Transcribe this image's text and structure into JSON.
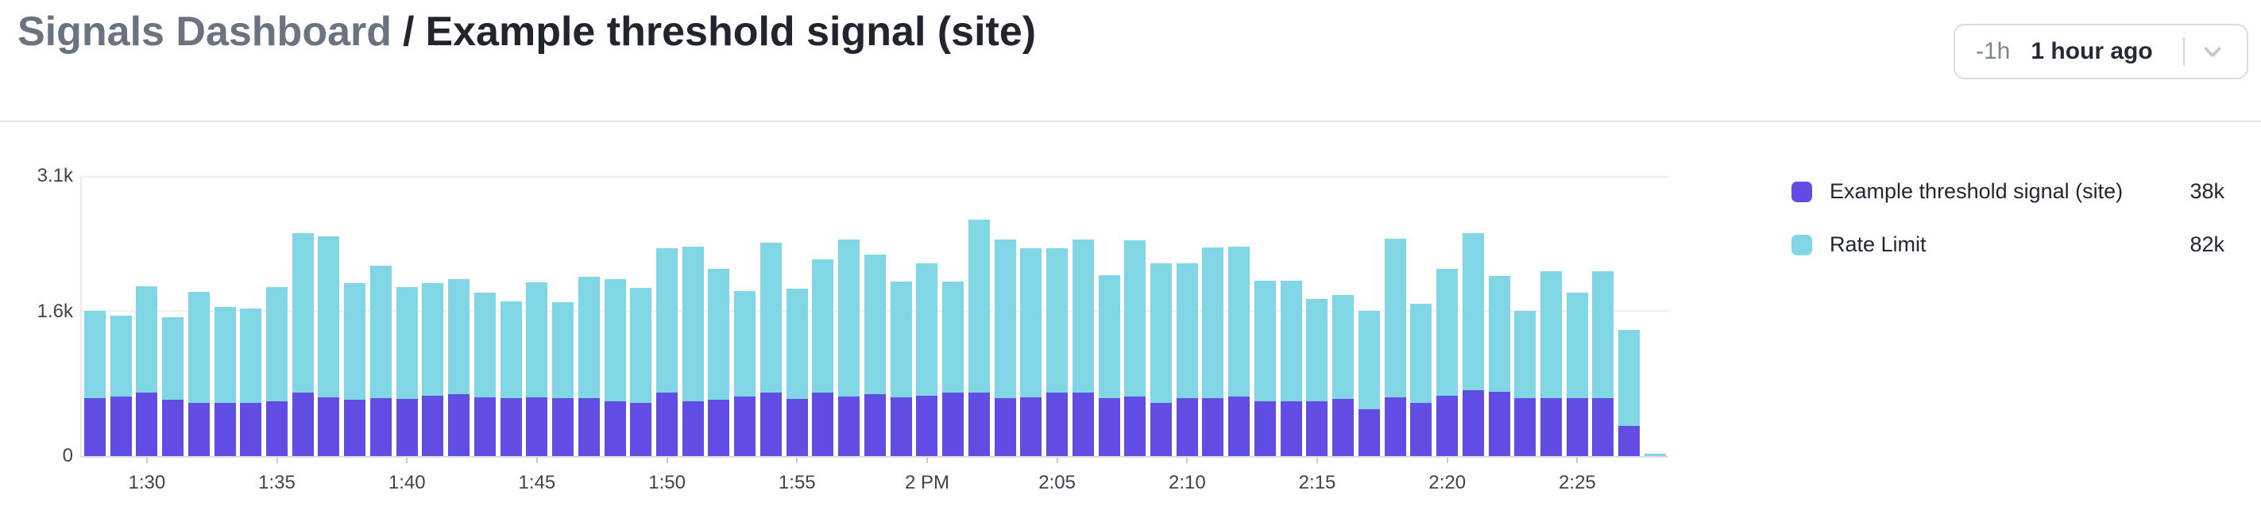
{
  "header": {
    "breadcrumb": "Signals Dashboard",
    "separator": "/",
    "title": "Example threshold signal (site)",
    "time_range_button": {
      "shorthand": "-1h",
      "label": "1 hour ago",
      "chevron_icon": "chevron-down"
    }
  },
  "colors": {
    "threshold_purple": "#614de4",
    "rate_limit_cyan": "#80d6e5",
    "grid": "#eceef1",
    "axis": "#d9dce2",
    "title_gray": "#6a7380",
    "title_dark": "#20252e"
  },
  "chart_data": {
    "type": "bar",
    "stacked": true,
    "title": "",
    "xlabel": "",
    "ylabel": "",
    "ylim": [
      0,
      3100
    ],
    "grid": "horizontal",
    "legend_position": "right",
    "y_ticks": [
      {
        "label": "3.1k",
        "value": 3100
      },
      {
        "label": "1.6k",
        "value": 1600
      },
      {
        "label": "0",
        "value": 0
      }
    ],
    "x_ticks": {
      "labels": [
        "1:30",
        "1:35",
        "1:40",
        "1:45",
        "1:50",
        "1:55",
        "2 PM",
        "2:05",
        "2:10",
        "2:15",
        "2:20",
        "2:25"
      ],
      "bar_indices": [
        2,
        7,
        12,
        17,
        22,
        27,
        32,
        37,
        42,
        47,
        52,
        57
      ]
    },
    "series": [
      {
        "name": "Example threshold signal (site)",
        "color": "#614de4",
        "legend_value": "38k",
        "values": [
          640,
          655,
          700,
          625,
          585,
          585,
          585,
          605,
          700,
          650,
          625,
          640,
          635,
          670,
          685,
          650,
          640,
          650,
          640,
          640,
          605,
          590,
          700,
          605,
          620,
          655,
          705,
          635,
          700,
          660,
          685,
          650,
          670,
          700,
          700,
          640,
          650,
          700,
          705,
          645,
          660,
          590,
          640,
          645,
          655,
          605,
          610,
          610,
          635,
          520,
          650,
          590,
          670,
          725,
          710,
          645,
          640,
          640,
          640,
          335,
          0
        ]
      },
      {
        "name": "Rate Limit",
        "color": "#80d6e5",
        "legend_value": "82k",
        "values": [
          965,
          900,
          1180,
          915,
          1230,
          1070,
          1050,
          1265,
          1770,
          1780,
          1290,
          1465,
          1235,
          1245,
          1270,
          1155,
          1075,
          1270,
          1060,
          1345,
          1350,
          1270,
          1605,
          1710,
          1450,
          1175,
          1660,
          1215,
          1480,
          1740,
          1545,
          1280,
          1465,
          1230,
          1915,
          1760,
          1655,
          1605,
          1695,
          1360,
          1725,
          1545,
          1495,
          1665,
          1665,
          1340,
          1335,
          1130,
          1150,
          1085,
          1760,
          1095,
          1405,
          1740,
          1280,
          960,
          1410,
          1165,
          1410,
          1065,
          30
        ]
      }
    ]
  }
}
